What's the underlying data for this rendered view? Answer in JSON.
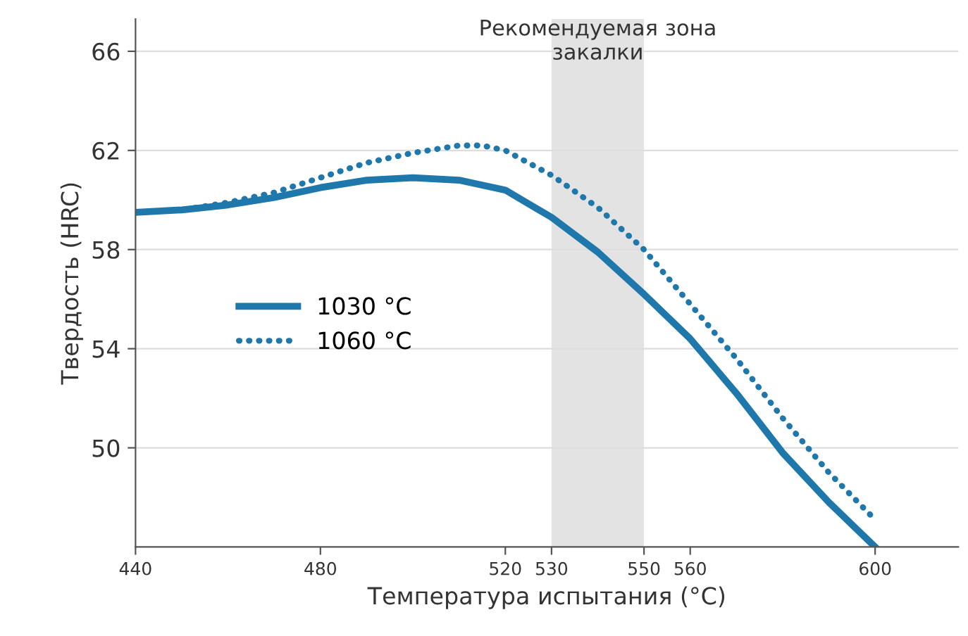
{
  "chart_data": {
    "type": "line",
    "xlabel": "Температура испытания (°C)",
    "ylabel": "Твердость (HRC)",
    "xlim": [
      440,
      618
    ],
    "ylim": [
      46,
      67.3
    ],
    "xticks": [
      440,
      480,
      520,
      530,
      550,
      560,
      600
    ],
    "yticks": [
      50,
      54,
      58,
      62,
      66
    ],
    "grid": "y",
    "legend": "left",
    "bands": [
      {
        "axis": "x",
        "from": 530,
        "to": 550,
        "label": "Рекомендуемая зона\nзакалки",
        "color": "#e3e3e3"
      }
    ],
    "series": [
      {
        "name": "1030 °C",
        "color": "#1f78ab",
        "line_style": "solid",
        "x": [
          440,
          450,
          460,
          470,
          480,
          490,
          500,
          510,
          520,
          530,
          540,
          550,
          560,
          570,
          580,
          590,
          600
        ],
        "values": [
          59.5,
          59.6,
          59.8,
          60.1,
          60.5,
          60.8,
          60.9,
          60.8,
          60.4,
          59.3,
          57.9,
          56.2,
          54.4,
          52.2,
          49.8,
          47.8,
          46.0
        ]
      },
      {
        "name": "1060 °C",
        "color": "#1f78ab",
        "line_style": "dotted",
        "x": [
          440,
          450,
          460,
          470,
          480,
          490,
          500,
          510,
          515,
          520,
          530,
          540,
          550,
          560,
          570,
          580,
          590,
          600
        ],
        "values": [
          59.5,
          59.6,
          59.9,
          60.3,
          60.9,
          61.5,
          61.9,
          62.2,
          62.2,
          62.0,
          61.0,
          59.7,
          58.0,
          55.8,
          53.6,
          51.2,
          49.0,
          47.1
        ]
      }
    ]
  }
}
